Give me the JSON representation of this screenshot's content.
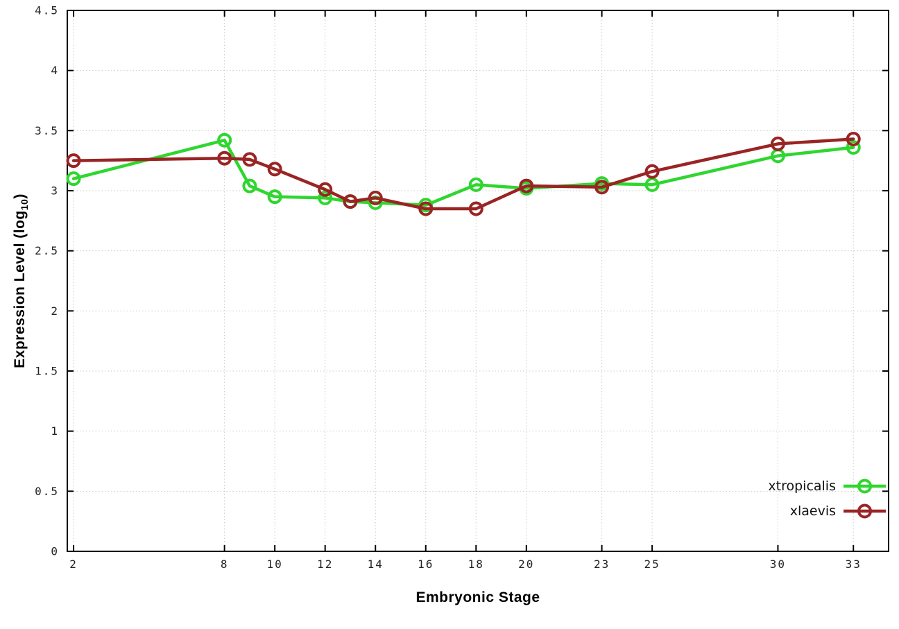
{
  "chart_data": {
    "type": "line",
    "title": "",
    "xlabel": "Embryonic Stage",
    "ylabel_prefix": "Expression Level (log",
    "ylabel_sub": "10",
    "ylabel_suffix": ")",
    "x": [
      2,
      8,
      9,
      10,
      12,
      13,
      14,
      16,
      18,
      20,
      23,
      25,
      30,
      33
    ],
    "xticks": [
      2,
      8,
      10,
      12,
      14,
      16,
      18,
      20,
      23,
      25,
      30,
      33
    ],
    "yticks": [
      0,
      0.5,
      1,
      1.5,
      2,
      2.5,
      3,
      3.5,
      4,
      4.5
    ],
    "ytick_labels": [
      "0",
      "0.5",
      "1",
      "1.5",
      "2",
      "2.5",
      "3",
      "3.5",
      "4",
      "4.5"
    ],
    "xlim": [
      1.75,
      34.4
    ],
    "ylim": [
      0,
      4.5
    ],
    "grid": true,
    "legend_position": "bottom-right",
    "series": [
      {
        "name": "xtropicalis",
        "color": "#2fd62f",
        "values": [
          3.1,
          3.42,
          3.04,
          2.95,
          2.94,
          2.91,
          2.9,
          2.88,
          3.05,
          3.02,
          3.06,
          3.05,
          3.29,
          3.36
        ]
      },
      {
        "name": "xlaevis",
        "color": "#9a2424",
        "values": [
          3.25,
          3.27,
          3.26,
          3.18,
          3.01,
          2.91,
          2.94,
          2.85,
          2.85,
          3.04,
          3.03,
          3.16,
          3.39,
          3.43
        ]
      }
    ]
  }
}
